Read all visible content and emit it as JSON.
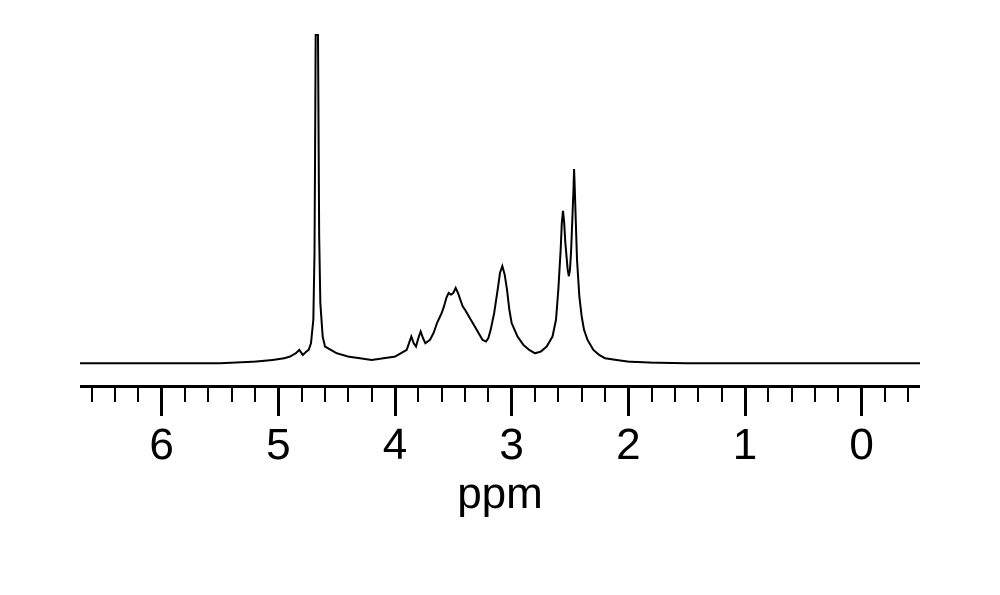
{
  "nmr_spectrum": {
    "type": "line",
    "xlabel": "ppm",
    "label_fontsize": 44,
    "tick_fontsize": 44,
    "xlim": [
      -0.5,
      6.7
    ],
    "x_ticks_major": [
      0,
      1,
      2,
      3,
      4,
      5,
      6
    ],
    "x_minor_step": 0.2,
    "line_color": "#000000",
    "line_width": 2,
    "axis_color": "#000000",
    "axis_width": 3,
    "tick_major_height": 28,
    "tick_minor_height": 14,
    "background_color": "#ffffff",
    "baseline_y": 0.02,
    "y_max": 1.0,
    "spectrum_points": [
      [
        6.7,
        0.02
      ],
      [
        6.5,
        0.02
      ],
      [
        6.0,
        0.02
      ],
      [
        5.5,
        0.02
      ],
      [
        5.2,
        0.025
      ],
      [
        5.05,
        0.03
      ],
      [
        4.95,
        0.035
      ],
      [
        4.9,
        0.04
      ],
      [
        4.85,
        0.05
      ],
      [
        4.82,
        0.06
      ],
      [
        4.79,
        0.045
      ],
      [
        4.76,
        0.055
      ],
      [
        4.74,
        0.06
      ],
      [
        4.72,
        0.08
      ],
      [
        4.7,
        0.15
      ],
      [
        4.69,
        0.35
      ],
      [
        4.685,
        0.65
      ],
      [
        4.68,
        1.0
      ],
      [
        4.67,
        1.0
      ],
      [
        4.66,
        1.0
      ],
      [
        4.655,
        0.7
      ],
      [
        4.65,
        0.4
      ],
      [
        4.64,
        0.2
      ],
      [
        4.62,
        0.1
      ],
      [
        4.6,
        0.07
      ],
      [
        4.5,
        0.05
      ],
      [
        4.4,
        0.04
      ],
      [
        4.3,
        0.035
      ],
      [
        4.2,
        0.03
      ],
      [
        4.1,
        0.035
      ],
      [
        4.0,
        0.04
      ],
      [
        3.95,
        0.05
      ],
      [
        3.9,
        0.06
      ],
      [
        3.88,
        0.08
      ],
      [
        3.86,
        0.1
      ],
      [
        3.84,
        0.08
      ],
      [
        3.82,
        0.07
      ],
      [
        3.8,
        0.095
      ],
      [
        3.78,
        0.115
      ],
      [
        3.76,
        0.095
      ],
      [
        3.74,
        0.08
      ],
      [
        3.7,
        0.09
      ],
      [
        3.67,
        0.11
      ],
      [
        3.64,
        0.14
      ],
      [
        3.6,
        0.17
      ],
      [
        3.58,
        0.19
      ],
      [
        3.56,
        0.215
      ],
      [
        3.54,
        0.23
      ],
      [
        3.52,
        0.225
      ],
      [
        3.5,
        0.23
      ],
      [
        3.48,
        0.245
      ],
      [
        3.46,
        0.23
      ],
      [
        3.44,
        0.21
      ],
      [
        3.42,
        0.19
      ],
      [
        3.4,
        0.18
      ],
      [
        3.35,
        0.15
      ],
      [
        3.3,
        0.12
      ],
      [
        3.25,
        0.09
      ],
      [
        3.22,
        0.085
      ],
      [
        3.2,
        0.095
      ],
      [
        3.18,
        0.12
      ],
      [
        3.15,
        0.17
      ],
      [
        3.12,
        0.24
      ],
      [
        3.1,
        0.29
      ],
      [
        3.08,
        0.31
      ],
      [
        3.06,
        0.285
      ],
      [
        3.04,
        0.24
      ],
      [
        3.02,
        0.18
      ],
      [
        3.0,
        0.14
      ],
      [
        2.95,
        0.1
      ],
      [
        2.9,
        0.075
      ],
      [
        2.85,
        0.06
      ],
      [
        2.8,
        0.05
      ],
      [
        2.75,
        0.055
      ],
      [
        2.7,
        0.07
      ],
      [
        2.65,
        0.1
      ],
      [
        2.62,
        0.15
      ],
      [
        2.6,
        0.24
      ],
      [
        2.58,
        0.36
      ],
      [
        2.57,
        0.44
      ],
      [
        2.56,
        0.475
      ],
      [
        2.55,
        0.44
      ],
      [
        2.54,
        0.38
      ],
      [
        2.52,
        0.3
      ],
      [
        2.51,
        0.28
      ],
      [
        2.5,
        0.3
      ],
      [
        2.49,
        0.36
      ],
      [
        2.48,
        0.45
      ],
      [
        2.47,
        0.54
      ],
      [
        2.465,
        0.6
      ],
      [
        2.46,
        0.55
      ],
      [
        2.45,
        0.44
      ],
      [
        2.44,
        0.33
      ],
      [
        2.42,
        0.22
      ],
      [
        2.4,
        0.16
      ],
      [
        2.38,
        0.12
      ],
      [
        2.35,
        0.09
      ],
      [
        2.3,
        0.06
      ],
      [
        2.25,
        0.045
      ],
      [
        2.2,
        0.035
      ],
      [
        2.1,
        0.03
      ],
      [
        2.0,
        0.025
      ],
      [
        1.8,
        0.022
      ],
      [
        1.5,
        0.02
      ],
      [
        1.0,
        0.02
      ],
      [
        0.5,
        0.02
      ],
      [
        0.0,
        0.02
      ],
      [
        -0.5,
        0.02
      ]
    ]
  }
}
